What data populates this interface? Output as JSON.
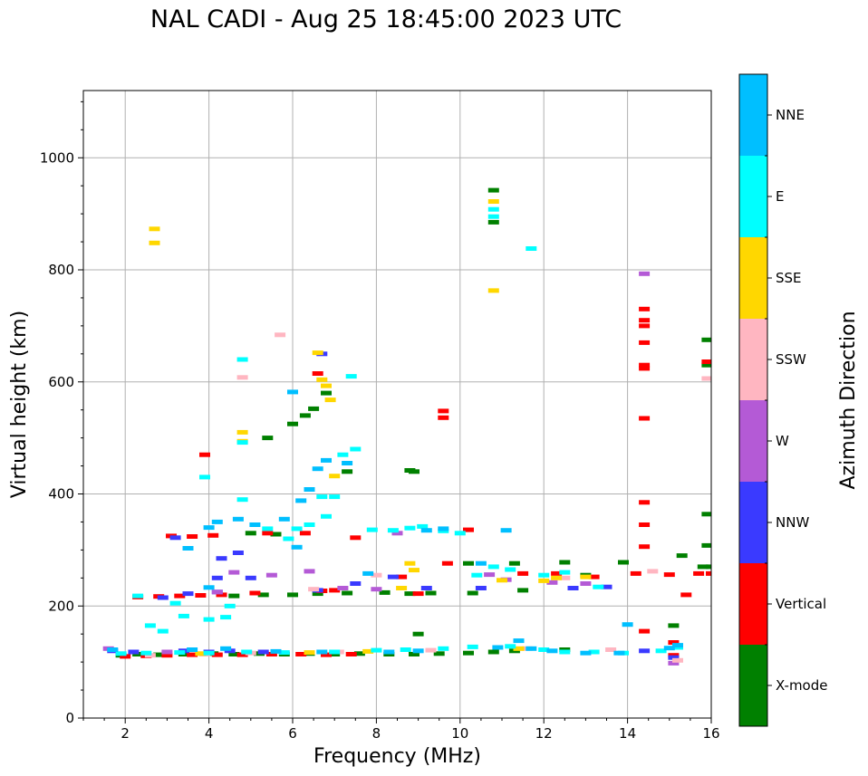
{
  "chart_data": {
    "type": "scatter",
    "title": "NAL CADI - Aug 25 18:45:00 2023 UTC",
    "xlabel": "Frequency (MHz)",
    "ylabel": "Virtual height (km)",
    "xlim": [
      1,
      16
    ],
    "ylim": [
      0,
      1120
    ],
    "x_ticks": [
      2,
      4,
      6,
      8,
      10,
      12,
      14,
      16
    ],
    "y_ticks": [
      0,
      200,
      400,
      600,
      800,
      1000
    ],
    "grid": true,
    "colorbar": {
      "label": "Azimuth Direction",
      "categories": [
        {
          "name": "X-mode",
          "color": "#008000"
        },
        {
          "name": "Vertical",
          "color": "#ff0000"
        },
        {
          "name": "NNW",
          "color": "#3a3aff"
        },
        {
          "name": "W",
          "color": "#b45ad6"
        },
        {
          "name": "SSW",
          "color": "#ffb6c1"
        },
        {
          "name": "SSE",
          "color": "#ffd700"
        },
        {
          "name": "E",
          "color": "#00ffff"
        },
        {
          "name": "NNE",
          "color": "#00bfff"
        }
      ]
    },
    "series": [
      {
        "name": "X-mode",
        "points": [
          [
            1.9,
            112
          ],
          [
            2.3,
            114
          ],
          [
            2.8,
            113
          ],
          [
            3.4,
            114
          ],
          [
            4.1,
            115
          ],
          [
            4.6,
            114
          ],
          [
            5.2,
            115
          ],
          [
            5.8,
            114
          ],
          [
            6.4,
            115
          ],
          [
            7.0,
            114
          ],
          [
            7.6,
            115
          ],
          [
            8.3,
            114
          ],
          [
            8.9,
            114
          ],
          [
            9.5,
            115
          ],
          [
            10.2,
            116
          ],
          [
            10.8,
            118
          ],
          [
            11.3,
            120
          ],
          [
            12.5,
            122
          ],
          [
            4.6,
            218
          ],
          [
            5.3,
            220
          ],
          [
            6.0,
            220
          ],
          [
            6.6,
            222
          ],
          [
            7.3,
            223
          ],
          [
            8.2,
            224
          ],
          [
            8.8,
            222
          ],
          [
            9.3,
            223
          ],
          [
            10.3,
            223
          ],
          [
            5.0,
            330
          ],
          [
            5.6,
            328
          ],
          [
            8.8,
            442
          ],
          [
            8.9,
            440
          ],
          [
            10.2,
            276
          ],
          [
            11.3,
            276
          ],
          [
            12.5,
            278
          ],
          [
            13.9,
            278
          ],
          [
            15.3,
            290
          ],
          [
            15.8,
            270
          ],
          [
            16.0,
            270
          ],
          [
            15.9,
            630
          ],
          [
            15.9,
            675
          ],
          [
            15.9,
            364
          ],
          [
            15.9,
            308
          ],
          [
            6.0,
            525
          ],
          [
            6.3,
            540
          ],
          [
            6.5,
            552
          ],
          [
            6.8,
            580
          ],
          [
            5.4,
            500
          ],
          [
            10.8,
            942
          ],
          [
            10.8,
            885
          ],
          [
            7.3,
            440
          ],
          [
            9.0,
            150
          ],
          [
            15.1,
            165
          ],
          [
            11.5,
            228
          ],
          [
            13.0,
            255
          ]
        ]
      },
      {
        "name": "Vertical",
        "points": [
          [
            2.0,
            110
          ],
          [
            2.5,
            111
          ],
          [
            3.0,
            112
          ],
          [
            3.6,
            113
          ],
          [
            4.2,
            113
          ],
          [
            4.8,
            113
          ],
          [
            5.5,
            114
          ],
          [
            6.2,
            114
          ],
          [
            6.8,
            113
          ],
          [
            7.4,
            114
          ],
          [
            2.3,
            216
          ],
          [
            2.8,
            217
          ],
          [
            3.3,
            218
          ],
          [
            3.8,
            219
          ],
          [
            4.3,
            220
          ],
          [
            5.1,
            223
          ],
          [
            6.7,
            227
          ],
          [
            7.0,
            228
          ],
          [
            9.0,
            222
          ],
          [
            3.1,
            325
          ],
          [
            3.6,
            324
          ],
          [
            4.1,
            326
          ],
          [
            5.4,
            330
          ],
          [
            6.3,
            330
          ],
          [
            7.5,
            322
          ],
          [
            8.6,
            252
          ],
          [
            9.7,
            276
          ],
          [
            11.5,
            258
          ],
          [
            12.3,
            258
          ],
          [
            13.2,
            252
          ],
          [
            14.2,
            258
          ],
          [
            15.0,
            256
          ],
          [
            15.7,
            258
          ],
          [
            16.0,
            258
          ],
          [
            14.4,
            730
          ],
          [
            14.4,
            710
          ],
          [
            14.4,
            700
          ],
          [
            14.4,
            670
          ],
          [
            14.4,
            630
          ],
          [
            14.4,
            624
          ],
          [
            14.4,
            535
          ],
          [
            14.4,
            385
          ],
          [
            14.4,
            345
          ],
          [
            14.4,
            306
          ],
          [
            14.4,
            155
          ],
          [
            15.1,
            135
          ],
          [
            15.4,
            220
          ],
          [
            15.9,
            636
          ],
          [
            9.6,
            548
          ],
          [
            9.6,
            536
          ],
          [
            3.9,
            470
          ],
          [
            6.6,
            615
          ],
          [
            15.1,
            112
          ],
          [
            10.2,
            336
          ]
        ]
      },
      {
        "name": "NNW",
        "points": [
          [
            1.7,
            120
          ],
          [
            2.2,
            118
          ],
          [
            3.4,
            120
          ],
          [
            4.0,
            118
          ],
          [
            4.5,
            120
          ],
          [
            5.3,
            118
          ],
          [
            2.9,
            215
          ],
          [
            3.5,
            222
          ],
          [
            4.2,
            250
          ],
          [
            5.0,
            250
          ],
          [
            6.6,
            228
          ],
          [
            8.4,
            252
          ],
          [
            9.2,
            232
          ],
          [
            10.5,
            232
          ],
          [
            12.7,
            232
          ],
          [
            13.5,
            234
          ],
          [
            14.4,
            120
          ],
          [
            15.1,
            108
          ],
          [
            4.3,
            285
          ],
          [
            4.7,
            295
          ],
          [
            3.2,
            322
          ],
          [
            6.7,
            650
          ],
          [
            4.2,
            225
          ],
          [
            7.5,
            240
          ]
        ]
      },
      {
        "name": "W",
        "points": [
          [
            1.6,
            124
          ],
          [
            3.0,
            118
          ],
          [
            4.2,
            225
          ],
          [
            6.4,
            262
          ],
          [
            7.2,
            232
          ],
          [
            8.0,
            230
          ],
          [
            12.2,
            242
          ],
          [
            13.0,
            240
          ],
          [
            14.4,
            793
          ],
          [
            15.1,
            98
          ],
          [
            11.1,
            247
          ],
          [
            10.7,
            256
          ],
          [
            4.6,
            260
          ],
          [
            5.5,
            255
          ],
          [
            8.5,
            330
          ]
        ]
      },
      {
        "name": "SSW",
        "points": [
          [
            2.6,
            112
          ],
          [
            3.9,
            114
          ],
          [
            5.0,
            116
          ],
          [
            7.1,
            118
          ],
          [
            9.3,
            121
          ],
          [
            11.6,
            124
          ],
          [
            13.6,
            122
          ],
          [
            14.6,
            262
          ],
          [
            15.9,
            606
          ],
          [
            4.8,
            608
          ],
          [
            6.5,
            230
          ],
          [
            8.0,
            255
          ],
          [
            5.7,
            684
          ],
          [
            12.5,
            250
          ],
          [
            15.2,
            103
          ]
        ]
      },
      {
        "name": "SSE",
        "points": [
          [
            2.7,
            873
          ],
          [
            2.7,
            848
          ],
          [
            6.7,
            604
          ],
          [
            6.8,
            593
          ],
          [
            6.9,
            568
          ],
          [
            7.0,
            432
          ],
          [
            4.8,
            494
          ],
          [
            4.8,
            510
          ],
          [
            8.8,
            276
          ],
          [
            8.9,
            264
          ],
          [
            11.0,
            246
          ],
          [
            12.0,
            245
          ],
          [
            12.3,
            250
          ],
          [
            13.0,
            252
          ],
          [
            10.8,
            922
          ],
          [
            10.8,
            763
          ],
          [
            6.6,
            652
          ],
          [
            8.6,
            232
          ],
          [
            3.8,
            115
          ],
          [
            6.4,
            117
          ],
          [
            7.8,
            119
          ],
          [
            11.4,
            124
          ]
        ]
      },
      {
        "name": "E",
        "points": [
          [
            1.9,
            115
          ],
          [
            2.5,
            116
          ],
          [
            3.3,
            117
          ],
          [
            4.0,
            116
          ],
          [
            4.9,
            118
          ],
          [
            5.8,
            117
          ],
          [
            7.0,
            118
          ],
          [
            8.0,
            121
          ],
          [
            8.7,
            122
          ],
          [
            9.6,
            124
          ],
          [
            10.3,
            127
          ],
          [
            11.2,
            128
          ],
          [
            12.0,
            122
          ],
          [
            12.5,
            118
          ],
          [
            13.2,
            118
          ],
          [
            13.9,
            116
          ],
          [
            14.8,
            120
          ],
          [
            15.2,
            126
          ],
          [
            2.3,
            218
          ],
          [
            3.4,
            182
          ],
          [
            4.0,
            176
          ],
          [
            4.4,
            180
          ],
          [
            3.2,
            205
          ],
          [
            4.5,
            200
          ],
          [
            4.8,
            390
          ],
          [
            4.8,
            640
          ],
          [
            4.8,
            492
          ],
          [
            3.9,
            430
          ],
          [
            5.4,
            338
          ],
          [
            5.9,
            320
          ],
          [
            6.1,
            338
          ],
          [
            6.4,
            345
          ],
          [
            6.8,
            360
          ],
          [
            7.0,
            395
          ],
          [
            7.2,
            470
          ],
          [
            7.5,
            480
          ],
          [
            7.9,
            336
          ],
          [
            8.4,
            335
          ],
          [
            8.8,
            339
          ],
          [
            9.1,
            342
          ],
          [
            9.6,
            334
          ],
          [
            10.4,
            255
          ],
          [
            10.8,
            270
          ],
          [
            11.2,
            265
          ],
          [
            11.7,
            838
          ],
          [
            10.8,
            908
          ],
          [
            10.8,
            895
          ],
          [
            2.9,
            155
          ],
          [
            2.6,
            165
          ],
          [
            10.0,
            330
          ],
          [
            12.0,
            255
          ],
          [
            12.5,
            260
          ],
          [
            13.3,
            234
          ],
          [
            7.4,
            610
          ],
          [
            6.7,
            395
          ]
        ]
      },
      {
        "name": "NNE",
        "points": [
          [
            1.7,
            122
          ],
          [
            3.6,
            122
          ],
          [
            4.4,
            124
          ],
          [
            5.6,
            119
          ],
          [
            6.7,
            118
          ],
          [
            8.3,
            118
          ],
          [
            9.0,
            120
          ],
          [
            10.9,
            126
          ],
          [
            11.7,
            124
          ],
          [
            12.2,
            120
          ],
          [
            13.0,
            116
          ],
          [
            13.8,
            116
          ],
          [
            14.0,
            167
          ],
          [
            15.0,
            125
          ],
          [
            15.2,
            130
          ],
          [
            11.1,
            335
          ],
          [
            9.6,
            338
          ],
          [
            9.2,
            335
          ],
          [
            4.0,
            340
          ],
          [
            4.2,
            350
          ],
          [
            4.7,
            355
          ],
          [
            5.1,
            345
          ],
          [
            5.8,
            355
          ],
          [
            6.2,
            388
          ],
          [
            6.4,
            408
          ],
          [
            6.6,
            445
          ],
          [
            6.8,
            460
          ],
          [
            7.3,
            455
          ],
          [
            6.0,
            582
          ],
          [
            4.0,
            233
          ],
          [
            7.8,
            258
          ],
          [
            10.5,
            276
          ],
          [
            11.4,
            138
          ],
          [
            3.5,
            303
          ],
          [
            6.1,
            305
          ]
        ]
      }
    ]
  }
}
